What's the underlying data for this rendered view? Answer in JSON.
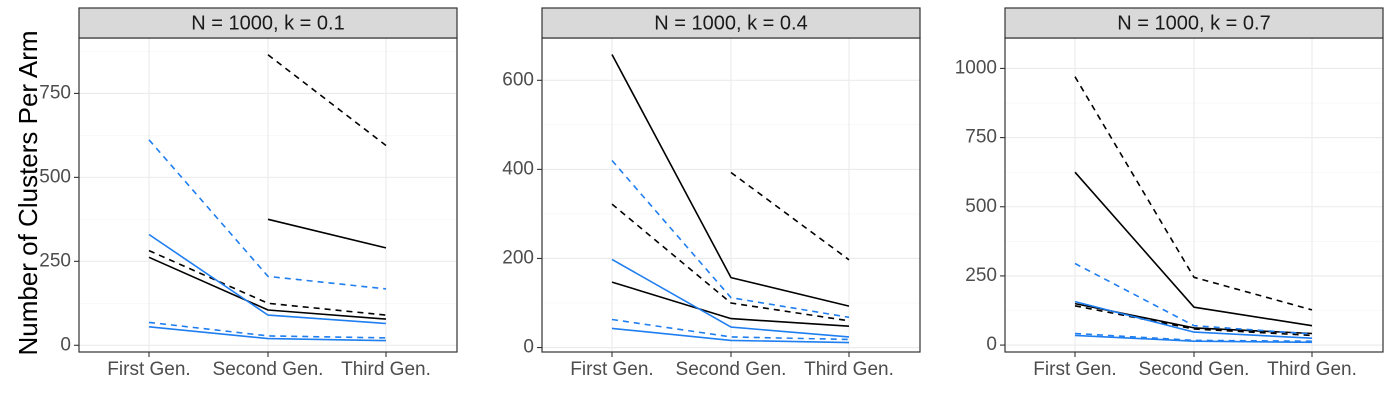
{
  "chart_data": {
    "type": "line",
    "ylabel": "Number of Clusters Per Arm",
    "xlabel": "",
    "categories": [
      "First Gen.",
      "Second Gen.",
      "Third Gen."
    ],
    "colors": {
      "black": "#000000",
      "blue": "#1f7ef0"
    },
    "grid": true,
    "legend": "none",
    "panels": [
      {
        "title": "N = 1000, k = 0.1",
        "ylim": [
          -20,
          915
        ],
        "yticks": [
          0,
          250,
          500,
          750
        ],
        "series": [
          {
            "color": "black",
            "dash": "solid",
            "values": [
              null,
              375,
              290
            ]
          },
          {
            "color": "black",
            "dash": "dashed",
            "values": [
              null,
              865,
              595
            ]
          },
          {
            "color": "black",
            "dash": "solid",
            "values": [
              262,
              105,
              78
            ]
          },
          {
            "color": "black",
            "dash": "dashed",
            "values": [
              282,
              125,
              90
            ]
          },
          {
            "color": "blue",
            "dash": "dashed",
            "values": [
              612,
              205,
              168
            ]
          },
          {
            "color": "blue",
            "dash": "solid",
            "values": [
              330,
              90,
              65
            ]
          },
          {
            "color": "blue",
            "dash": "dashed",
            "values": [
              68,
              28,
              22
            ]
          },
          {
            "color": "blue",
            "dash": "solid",
            "values": [
              55,
              20,
              14
            ]
          }
        ]
      },
      {
        "title": "N = 1000, k = 0.4",
        "ylim": [
          -10,
          695
        ],
        "yticks": [
          0,
          200,
          400,
          600
        ],
        "series": [
          {
            "color": "black",
            "dash": "solid",
            "values": [
              658,
              157,
              93
            ]
          },
          {
            "color": "black",
            "dash": "dashed",
            "values": [
              null,
              393,
              197
            ]
          },
          {
            "color": "black",
            "dash": "dashed",
            "values": [
              322,
              100,
              60
            ]
          },
          {
            "color": "black",
            "dash": "solid",
            "values": [
              147,
              65,
              48
            ]
          },
          {
            "color": "blue",
            "dash": "dashed",
            "values": [
              420,
              112,
              68
            ]
          },
          {
            "color": "blue",
            "dash": "solid",
            "values": [
              198,
              46,
              24
            ]
          },
          {
            "color": "blue",
            "dash": "dashed",
            "values": [
              63,
              24,
              18
            ]
          },
          {
            "color": "blue",
            "dash": "solid",
            "values": [
              43,
              16,
              11
            ]
          }
        ]
      },
      {
        "title": "N = 1000, k = 0.7",
        "ylim": [
          -25,
          1110
        ],
        "yticks": [
          0,
          250,
          500,
          750,
          1000
        ],
        "series": [
          {
            "color": "black",
            "dash": "dashed",
            "values": [
              970,
              245,
              127
            ]
          },
          {
            "color": "black",
            "dash": "solid",
            "values": [
              625,
              137,
              70
            ]
          },
          {
            "color": "black",
            "dash": "solid",
            "values": [
              150,
              62,
              42
            ]
          },
          {
            "color": "black",
            "dash": "dashed",
            "values": [
              142,
              58,
              35
            ]
          },
          {
            "color": "blue",
            "dash": "dashed",
            "values": [
              295,
              70,
              40
            ]
          },
          {
            "color": "blue",
            "dash": "solid",
            "values": [
              157,
              47,
              25
            ]
          },
          {
            "color": "blue",
            "dash": "dashed",
            "values": [
              42,
              17,
              14
            ]
          },
          {
            "color": "blue",
            "dash": "solid",
            "values": [
              35,
              14,
              10
            ]
          }
        ]
      }
    ]
  }
}
